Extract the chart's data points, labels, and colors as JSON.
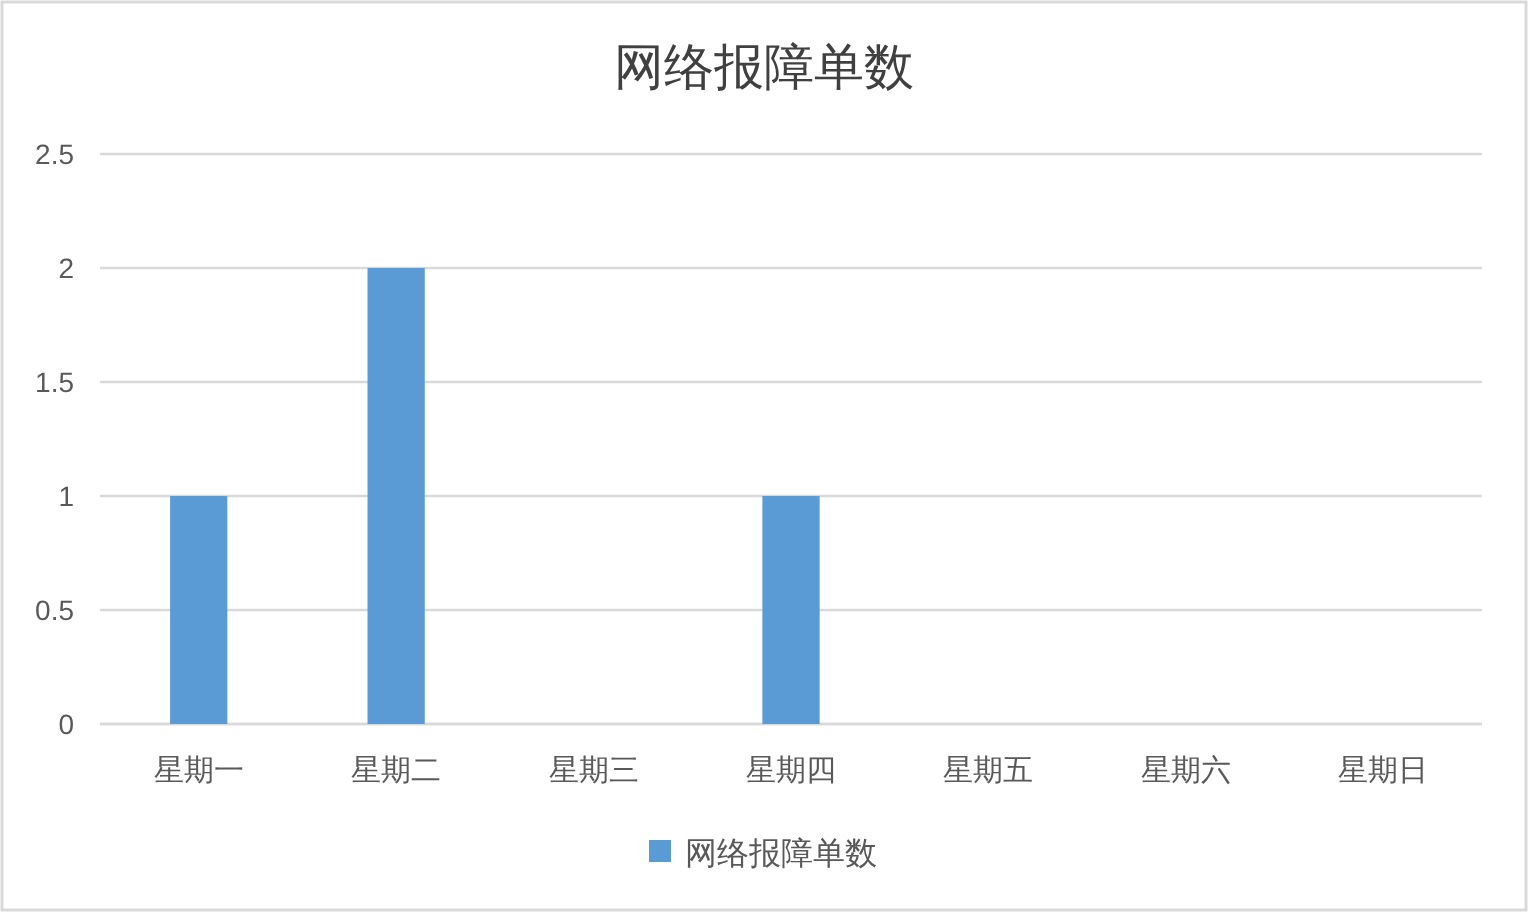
{
  "chart_data": {
    "type": "bar",
    "title": "网络报障单数",
    "categories": [
      "星期一",
      "星期二",
      "星期三",
      "星期四",
      "星期五",
      "星期六",
      "星期日"
    ],
    "series": [
      {
        "name": "网络报障单数",
        "color": "#5b9bd5",
        "values": [
          1,
          2,
          0,
          1,
          0,
          0,
          0
        ]
      }
    ],
    "ylim": [
      0,
      2.5
    ],
    "yticks": [
      0,
      0.5,
      1,
      1.5,
      2,
      2.5
    ],
    "grid": "y",
    "legend": "bottom"
  }
}
